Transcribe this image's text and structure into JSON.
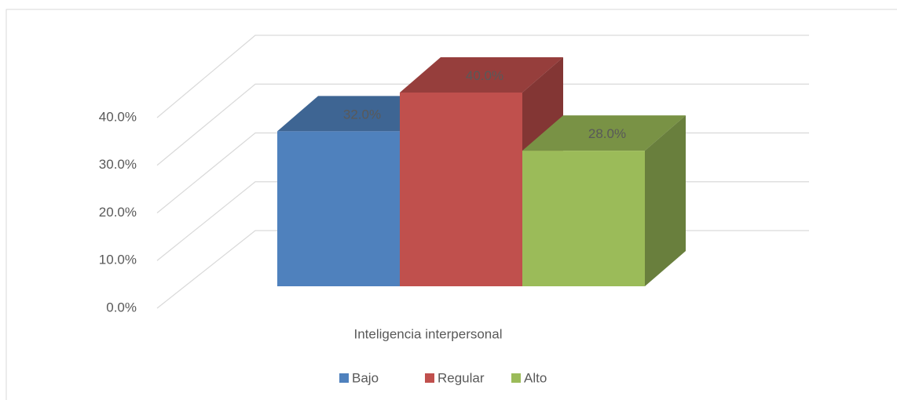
{
  "chart_data": {
    "type": "bar3d",
    "categories": [
      "Inteligencia interpersonal"
    ],
    "series": [
      {
        "name": "Bajo",
        "color": "#4f81bd",
        "values": [
          32
        ],
        "value_labels": [
          "32.0%"
        ]
      },
      {
        "name": "Regular",
        "color": "#c0504d",
        "values": [
          40
        ],
        "value_labels": [
          "40.0%"
        ]
      },
      {
        "name": "Alto",
        "color": "#9bbb59",
        "values": [
          28
        ],
        "value_labels": [
          "28.0%"
        ]
      }
    ],
    "ylim": [
      0,
      40
    ],
    "yticks": [
      {
        "value": 0,
        "label": "0.0%"
      },
      {
        "value": 10,
        "label": "10.0%"
      },
      {
        "value": 20,
        "label": "20.0%"
      },
      {
        "value": 30,
        "label": "30.0%"
      },
      {
        "value": 40,
        "label": "40.0%"
      }
    ],
    "grid": true,
    "legend": "bottom"
  }
}
